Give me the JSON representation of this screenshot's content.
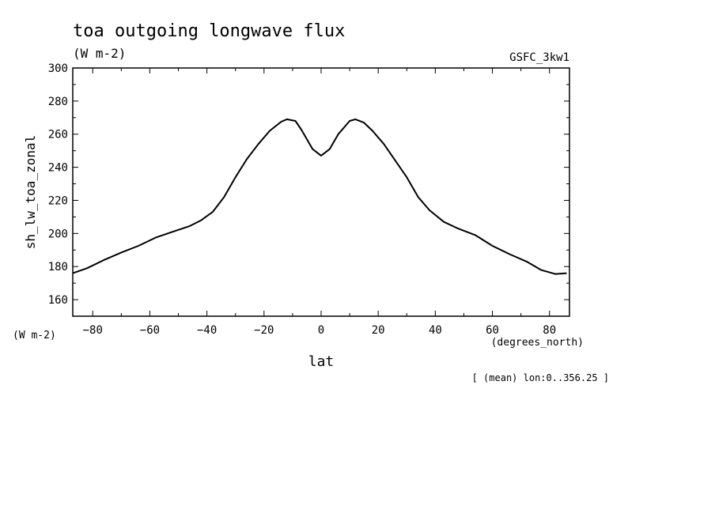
{
  "chart_data": {
    "type": "line",
    "title": "toa outgoing longwave flux",
    "subtitle": "(W m-2)",
    "source_label": "GSFC_3kw1",
    "xlabel": "lat",
    "x_units": "(degrees_north)",
    "ylabel": "sh_lw_toa_zonal",
    "y_units": "(W m-2)",
    "footnote": "[ (mean) lon:0..356.25 ]",
    "xlim": [
      -87,
      87
    ],
    "ylim": [
      150,
      300
    ],
    "x_ticks": [
      -80,
      -60,
      -40,
      -20,
      0,
      20,
      40,
      60,
      80
    ],
    "y_ticks": [
      160,
      180,
      200,
      220,
      240,
      260,
      280,
      300
    ],
    "grid": false,
    "series": [
      {
        "x": [
          -87,
          -82,
          -76,
          -70,
          -64,
          -58,
          -52,
          -46,
          -42,
          -38,
          -34,
          -30,
          -26,
          -22,
          -18,
          -14,
          -12,
          -9,
          -7,
          -3,
          0,
          3,
          6,
          10,
          12,
          15,
          18,
          22,
          26,
          30,
          34,
          38,
          43,
          48,
          54,
          60,
          66,
          72,
          77,
          82,
          86
        ],
        "y": [
          176,
          179,
          184,
          188.5,
          192.5,
          197.5,
          201,
          204.5,
          208,
          213,
          222,
          234,
          245,
          254,
          262,
          267.5,
          269,
          268,
          263,
          251,
          247,
          251,
          260,
          268,
          269,
          267,
          262,
          254,
          244,
          234,
          222,
          214,
          207,
          203,
          199,
          192.5,
          187.5,
          183,
          178,
          175.5,
          176
        ]
      }
    ]
  }
}
